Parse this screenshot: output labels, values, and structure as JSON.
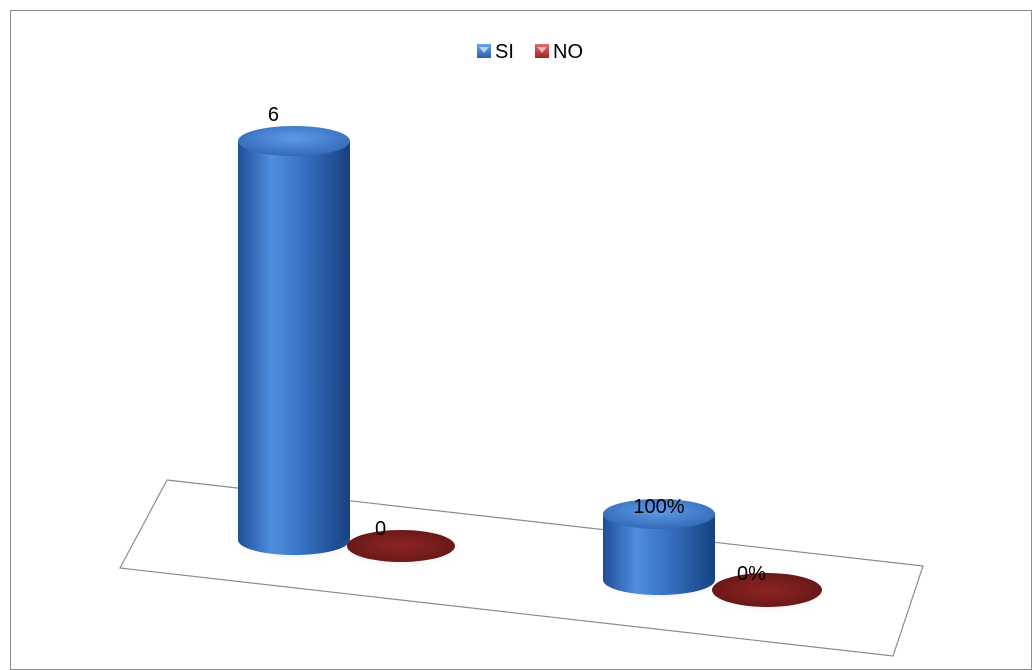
{
  "chart_data": {
    "type": "bar",
    "style": "3d-cylinder",
    "categories": [
      "",
      ""
    ],
    "series": [
      {
        "name": "SI",
        "color": "#3a74c6",
        "values": [
          6,
          1.0
        ],
        "labels": [
          "6",
          "100%"
        ]
      },
      {
        "name": "NO",
        "color": "#7a1f1f",
        "values": [
          0,
          0
        ],
        "labels": [
          "0",
          "0%"
        ]
      }
    ],
    "legend": {
      "position": "top-center",
      "entries": [
        "SI",
        "NO"
      ]
    },
    "grid": false,
    "axes_visible": false
  }
}
